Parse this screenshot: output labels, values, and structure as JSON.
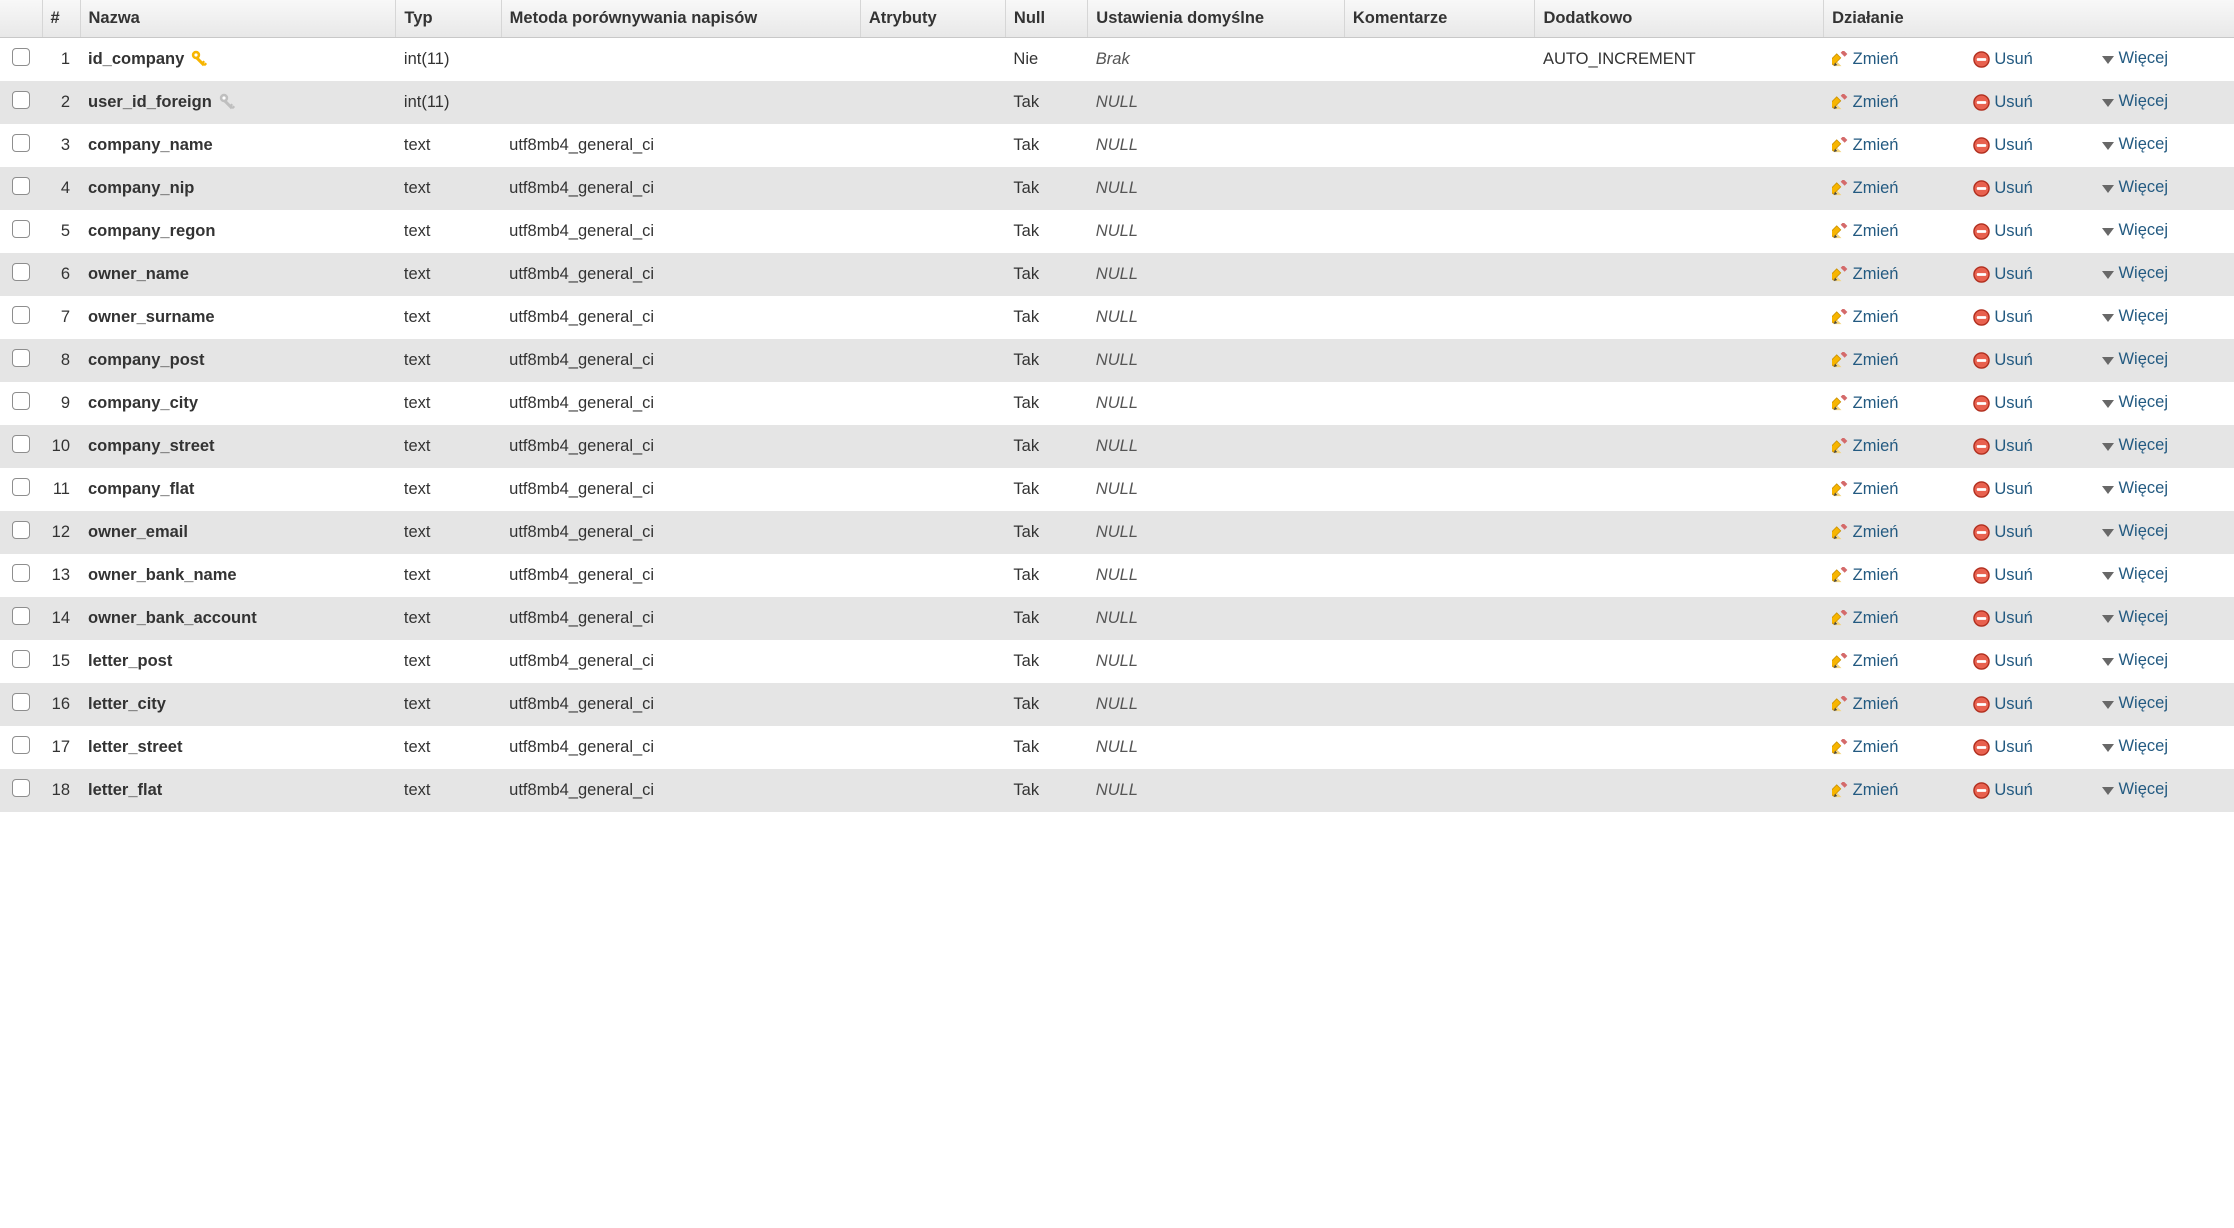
{
  "headers": {
    "num": "#",
    "name": "Nazwa",
    "type": "Typ",
    "collation": "Metoda porównywania napisów",
    "attributes": "Atrybuty",
    "null": "Null",
    "default": "Ustawienia domyślne",
    "comments": "Komentarze",
    "extra": "Dodatkowo",
    "action": "Działanie"
  },
  "action_labels": {
    "change": "Zmień",
    "drop": "Usuń",
    "more": "Więcej"
  },
  "colors": {
    "link": "#235a81",
    "row_even": "#e5e5e5",
    "row_odd": "#ffffff",
    "header_top": "#f8f8f8",
    "header_bottom": "#e8e8e8",
    "primary_key": "#f7b500",
    "index_key": "#bfbfbf",
    "delete_fill": "#e8614f",
    "delete_ring": "#b12f1f"
  },
  "rows": [
    {
      "num": "1",
      "name": "id_company",
      "key": "primary",
      "type": "int(11)",
      "collation": "",
      "attributes": "",
      "null": "Nie",
      "default": "Brak",
      "comments": "",
      "extra": "AUTO_INCREMENT"
    },
    {
      "num": "2",
      "name": "user_id_foreign",
      "key": "index",
      "type": "int(11)",
      "collation": "",
      "attributes": "",
      "null": "Tak",
      "default": "NULL",
      "comments": "",
      "extra": ""
    },
    {
      "num": "3",
      "name": "company_name",
      "key": "",
      "type": "text",
      "collation": "utf8mb4_general_ci",
      "attributes": "",
      "null": "Tak",
      "default": "NULL",
      "comments": "",
      "extra": ""
    },
    {
      "num": "4",
      "name": "company_nip",
      "key": "",
      "type": "text",
      "collation": "utf8mb4_general_ci",
      "attributes": "",
      "null": "Tak",
      "default": "NULL",
      "comments": "",
      "extra": ""
    },
    {
      "num": "5",
      "name": "company_regon",
      "key": "",
      "type": "text",
      "collation": "utf8mb4_general_ci",
      "attributes": "",
      "null": "Tak",
      "default": "NULL",
      "comments": "",
      "extra": ""
    },
    {
      "num": "6",
      "name": "owner_name",
      "key": "",
      "type": "text",
      "collation": "utf8mb4_general_ci",
      "attributes": "",
      "null": "Tak",
      "default": "NULL",
      "comments": "",
      "extra": ""
    },
    {
      "num": "7",
      "name": "owner_surname",
      "key": "",
      "type": "text",
      "collation": "utf8mb4_general_ci",
      "attributes": "",
      "null": "Tak",
      "default": "NULL",
      "comments": "",
      "extra": ""
    },
    {
      "num": "8",
      "name": "company_post",
      "key": "",
      "type": "text",
      "collation": "utf8mb4_general_ci",
      "attributes": "",
      "null": "Tak",
      "default": "NULL",
      "comments": "",
      "extra": ""
    },
    {
      "num": "9",
      "name": "company_city",
      "key": "",
      "type": "text",
      "collation": "utf8mb4_general_ci",
      "attributes": "",
      "null": "Tak",
      "default": "NULL",
      "comments": "",
      "extra": ""
    },
    {
      "num": "10",
      "name": "company_street",
      "key": "",
      "type": "text",
      "collation": "utf8mb4_general_ci",
      "attributes": "",
      "null": "Tak",
      "default": "NULL",
      "comments": "",
      "extra": ""
    },
    {
      "num": "11",
      "name": "company_flat",
      "key": "",
      "type": "text",
      "collation": "utf8mb4_general_ci",
      "attributes": "",
      "null": "Tak",
      "default": "NULL",
      "comments": "",
      "extra": ""
    },
    {
      "num": "12",
      "name": "owner_email",
      "key": "",
      "type": "text",
      "collation": "utf8mb4_general_ci",
      "attributes": "",
      "null": "Tak",
      "default": "NULL",
      "comments": "",
      "extra": ""
    },
    {
      "num": "13",
      "name": "owner_bank_name",
      "key": "",
      "type": "text",
      "collation": "utf8mb4_general_ci",
      "attributes": "",
      "null": "Tak",
      "default": "NULL",
      "comments": "",
      "extra": ""
    },
    {
      "num": "14",
      "name": "owner_bank_account",
      "key": "",
      "type": "text",
      "collation": "utf8mb4_general_ci",
      "attributes": "",
      "null": "Tak",
      "default": "NULL",
      "comments": "",
      "extra": ""
    },
    {
      "num": "15",
      "name": "letter_post",
      "key": "",
      "type": "text",
      "collation": "utf8mb4_general_ci",
      "attributes": "",
      "null": "Tak",
      "default": "NULL",
      "comments": "",
      "extra": ""
    },
    {
      "num": "16",
      "name": "letter_city",
      "key": "",
      "type": "text",
      "collation": "utf8mb4_general_ci",
      "attributes": "",
      "null": "Tak",
      "default": "NULL",
      "comments": "",
      "extra": ""
    },
    {
      "num": "17",
      "name": "letter_street",
      "key": "",
      "type": "text",
      "collation": "utf8mb4_general_ci",
      "attributes": "",
      "null": "Tak",
      "default": "NULL",
      "comments": "",
      "extra": ""
    },
    {
      "num": "18",
      "name": "letter_flat",
      "key": "",
      "type": "text",
      "collation": "utf8mb4_general_ci",
      "attributes": "",
      "null": "Tak",
      "default": "NULL",
      "comments": "",
      "extra": ""
    }
  ]
}
